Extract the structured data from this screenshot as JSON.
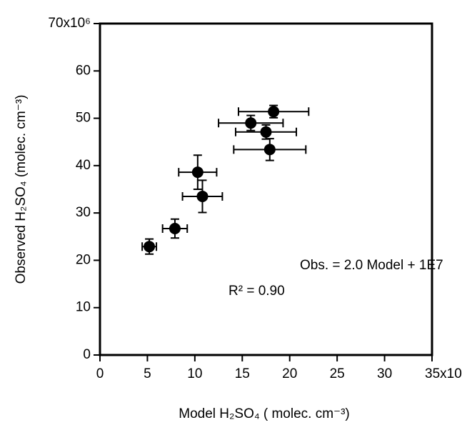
{
  "chart_data": {
    "type": "scatter",
    "x_label": "Model H₂SO₄  ( molec. cm⁻³)",
    "y_label": "Observed H₂SO₄  (molec. cm⁻³)",
    "annotations": [
      "Obs. = 2.0 Model + 1E7",
      "R² = 0.90"
    ],
    "xlim": [
      0,
      35
    ],
    "ylim": [
      0,
      70
    ],
    "xticks": [
      0,
      5,
      10,
      15,
      20,
      25,
      30,
      {
        "value": 35,
        "label": "35x10⁶"
      }
    ],
    "yticks": [
      0,
      10,
      20,
      30,
      40,
      50,
      60,
      {
        "value": 70,
        "label": "70x10⁶"
      }
    ],
    "series": [
      {
        "color": "#000000",
        "x": [
          5.2,
          7.9,
          10.3,
          10.8,
          15.9,
          18.3,
          17.5,
          17.9
        ],
        "values": [
          22.9,
          26.7,
          38.6,
          33.5,
          49.0,
          51.4,
          47.1,
          43.4
        ],
        "xerr": [
          0.75,
          1.3,
          2.0,
          2.1,
          3.4,
          3.7,
          3.2,
          3.8
        ],
        "yerr": [
          1.6,
          2.0,
          3.6,
          3.4,
          1.6,
          1.3,
          1.5,
          2.3
        ]
      }
    ]
  }
}
